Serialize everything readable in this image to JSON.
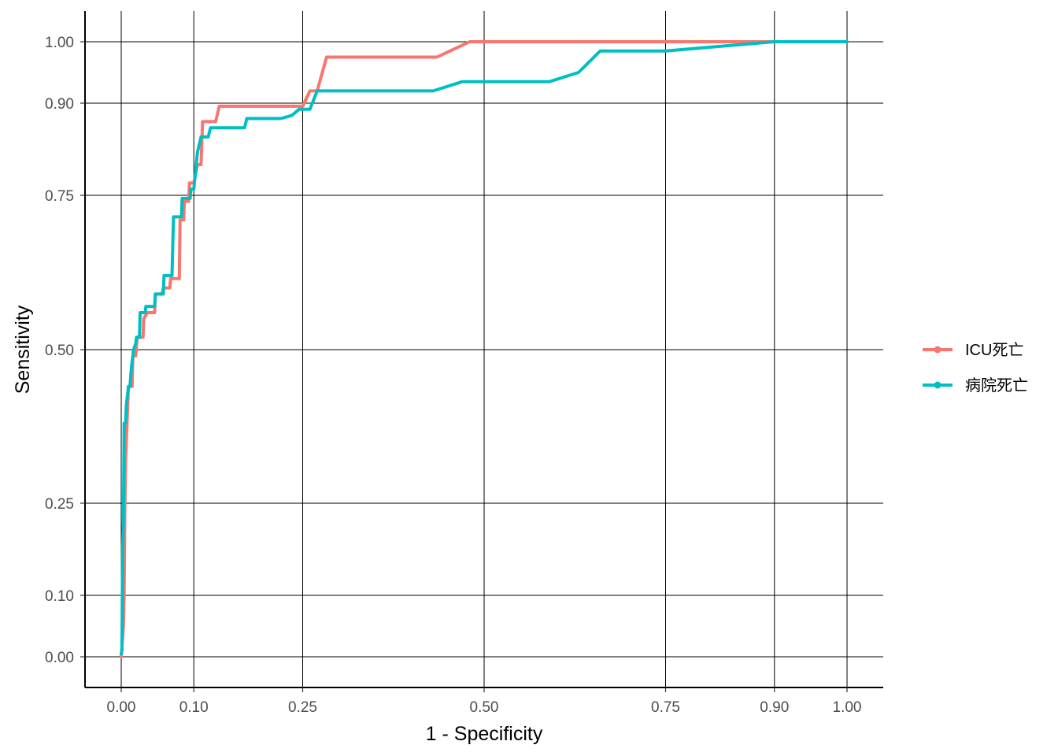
{
  "chart_data": {
    "type": "line",
    "xlabel": "1 - Specificity",
    "ylabel": "Sensitivity",
    "xlim": [
      -0.05,
      1.05
    ],
    "ylim": [
      -0.05,
      1.05
    ],
    "x_ticks": [
      0,
      0.1,
      0.25,
      0.5,
      0.75,
      0.9,
      1
    ],
    "x_tick_labels": [
      "0.00",
      "0.10",
      "0.25",
      "0.50",
      "0.75",
      "0.90",
      "1.00"
    ],
    "y_ticks": [
      0,
      0.1,
      0.25,
      0.5,
      0.75,
      0.9,
      1
    ],
    "y_tick_labels": [
      "0.00",
      "0.10",
      "0.25",
      "0.50",
      "0.75",
      "0.90",
      "1.00"
    ],
    "grid": true,
    "legend_position": "right",
    "series": [
      {
        "name": "ICU死亡",
        "color": "#F8766D",
        "points": [
          [
            0.0,
            0.0
          ],
          [
            0.003,
            0.05
          ],
          [
            0.004,
            0.1
          ],
          [
            0.005,
            0.24
          ],
          [
            0.006,
            0.32
          ],
          [
            0.008,
            0.38
          ],
          [
            0.01,
            0.44
          ],
          [
            0.015,
            0.44
          ],
          [
            0.016,
            0.49
          ],
          [
            0.02,
            0.49
          ],
          [
            0.022,
            0.52
          ],
          [
            0.03,
            0.52
          ],
          [
            0.031,
            0.55
          ],
          [
            0.036,
            0.56
          ],
          [
            0.046,
            0.56
          ],
          [
            0.047,
            0.59
          ],
          [
            0.056,
            0.59
          ],
          [
            0.058,
            0.6
          ],
          [
            0.067,
            0.6
          ],
          [
            0.068,
            0.615
          ],
          [
            0.08,
            0.615
          ],
          [
            0.081,
            0.71
          ],
          [
            0.086,
            0.71
          ],
          [
            0.087,
            0.74
          ],
          [
            0.093,
            0.74
          ],
          [
            0.094,
            0.77
          ],
          [
            0.1,
            0.77
          ],
          [
            0.105,
            0.8
          ],
          [
            0.11,
            0.8
          ],
          [
            0.112,
            0.87
          ],
          [
            0.13,
            0.87
          ],
          [
            0.135,
            0.895
          ],
          [
            0.17,
            0.895
          ],
          [
            0.25,
            0.895
          ],
          [
            0.26,
            0.92
          ],
          [
            0.27,
            0.92
          ],
          [
            0.283,
            0.975
          ],
          [
            0.3,
            0.975
          ],
          [
            0.435,
            0.975
          ],
          [
            0.48,
            1.0
          ],
          [
            1.0,
            1.0
          ]
        ]
      },
      {
        "name": "病院死亡",
        "color": "#00BFC4",
        "points": [
          [
            0.0,
            0.005
          ],
          [
            0.001,
            0.01
          ],
          [
            0.002,
            0.18
          ],
          [
            0.003,
            0.22
          ],
          [
            0.004,
            0.38
          ],
          [
            0.006,
            0.38
          ],
          [
            0.007,
            0.41
          ],
          [
            0.01,
            0.44
          ],
          [
            0.012,
            0.44
          ],
          [
            0.014,
            0.47
          ],
          [
            0.017,
            0.5
          ],
          [
            0.02,
            0.51
          ],
          [
            0.021,
            0.52
          ],
          [
            0.025,
            0.52
          ],
          [
            0.026,
            0.56
          ],
          [
            0.033,
            0.56
          ],
          [
            0.034,
            0.57
          ],
          [
            0.046,
            0.57
          ],
          [
            0.047,
            0.59
          ],
          [
            0.058,
            0.59
          ],
          [
            0.059,
            0.62
          ],
          [
            0.07,
            0.62
          ],
          [
            0.072,
            0.715
          ],
          [
            0.083,
            0.715
          ],
          [
            0.084,
            0.745
          ],
          [
            0.095,
            0.745
          ],
          [
            0.096,
            0.76
          ],
          [
            0.1,
            0.76
          ],
          [
            0.105,
            0.82
          ],
          [
            0.11,
            0.845
          ],
          [
            0.12,
            0.845
          ],
          [
            0.123,
            0.86
          ],
          [
            0.17,
            0.86
          ],
          [
            0.173,
            0.875
          ],
          [
            0.22,
            0.875
          ],
          [
            0.235,
            0.88
          ],
          [
            0.245,
            0.89
          ],
          [
            0.26,
            0.89
          ],
          [
            0.27,
            0.92
          ],
          [
            0.43,
            0.92
          ],
          [
            0.47,
            0.935
          ],
          [
            0.59,
            0.935
          ],
          [
            0.63,
            0.95
          ],
          [
            0.66,
            0.985
          ],
          [
            0.75,
            0.985
          ],
          [
            0.9,
            1.0
          ],
          [
            1.0,
            1.0
          ]
        ]
      }
    ]
  }
}
